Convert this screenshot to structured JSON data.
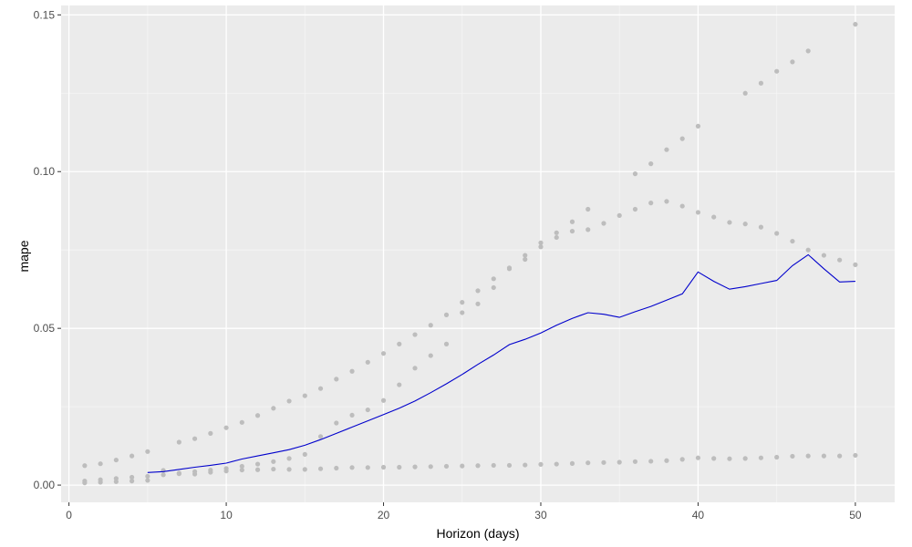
{
  "chart_data": {
    "type": "scatter",
    "title": "",
    "xlabel": "Horizon (days)",
    "ylabel": "mape",
    "xlim": [
      -0.5,
      52.5
    ],
    "ylim": [
      -0.0055,
      0.153
    ],
    "x_ticks": [
      0,
      10,
      20,
      30,
      40,
      50
    ],
    "x_tick_labels": [
      "0",
      "10",
      "20",
      "30",
      "40",
      "50"
    ],
    "y_ticks": [
      0.0,
      0.05,
      0.1,
      0.15
    ],
    "y_tick_labels": [
      "0.00",
      "0.05",
      "0.10",
      "0.15"
    ],
    "grid": true,
    "background_color": "#ebebeb",
    "point_color": "#bdbdbd",
    "line_color": "#0000cc",
    "series": [
      {
        "mark": "point",
        "x": [
          1,
          2,
          3,
          4,
          5,
          7,
          8,
          9,
          10,
          11,
          12,
          13,
          14,
          15,
          16,
          17,
          18,
          19,
          20,
          21,
          22,
          23,
          24,
          25,
          26,
          27,
          28,
          29,
          30,
          31,
          32,
          33,
          34,
          35,
          36,
          37,
          38,
          39,
          40,
          43,
          44,
          45,
          46,
          47,
          50
        ],
        "y": [
          0.0062,
          0.0068,
          0.008,
          0.0093,
          0.0107,
          0.0137,
          0.0148,
          0.0165,
          0.0183,
          0.02,
          0.0222,
          0.0245,
          0.0268,
          0.0285,
          0.0308,
          0.0338,
          0.0363,
          0.0392,
          0.042,
          0.045,
          0.048,
          0.051,
          0.0543,
          0.0583,
          0.062,
          0.0658,
          0.0693,
          0.0733,
          0.0773,
          0.0805,
          0.084,
          0.088,
          0.0835,
          0.086,
          0.0993,
          0.1025,
          0.107,
          0.1105,
          0.1145,
          0.125,
          0.1282,
          0.132,
          0.135,
          0.1385,
          0.147
        ]
      },
      {
        "mark": "point",
        "x": [
          1,
          2,
          3,
          4,
          5,
          6,
          7,
          8,
          9,
          10,
          11,
          12,
          13,
          14,
          15,
          16,
          17,
          18,
          19,
          20,
          21,
          22,
          23,
          24,
          25,
          26,
          27,
          28,
          29,
          30,
          31,
          32,
          33,
          36,
          37,
          38,
          39,
          40,
          41,
          42,
          43,
          44,
          45,
          46,
          47,
          48,
          49,
          50
        ],
        "y": [
          0.0013,
          0.0017,
          0.0021,
          0.0025,
          0.0028,
          0.0033,
          0.0038,
          0.0043,
          0.0048,
          0.0053,
          0.006,
          0.0067,
          0.0075,
          0.0085,
          0.0098,
          0.0155,
          0.0198,
          0.0223,
          0.024,
          0.027,
          0.032,
          0.0373,
          0.0413,
          0.045,
          0.055,
          0.0578,
          0.063,
          0.069,
          0.072,
          0.076,
          0.079,
          0.081,
          0.0815,
          0.088,
          0.09,
          0.0905,
          0.089,
          0.087,
          0.0855,
          0.0838,
          0.0833,
          0.0823,
          0.0803,
          0.0778,
          0.075,
          0.0733,
          0.0718,
          0.0703
        ]
      },
      {
        "mark": "point",
        "x": [
          1,
          2,
          3,
          4,
          5,
          6,
          7,
          8,
          9,
          10,
          11,
          12,
          13,
          14,
          15,
          16,
          17,
          18,
          19,
          20,
          21,
          22,
          23,
          24,
          25,
          26,
          27,
          28,
          29,
          30,
          31,
          32,
          33,
          34,
          35,
          36,
          37,
          38,
          39,
          40,
          41,
          42,
          43,
          44,
          45,
          46,
          47,
          48,
          49,
          50
        ],
        "y": [
          0.0007,
          0.0009,
          0.0011,
          0.0013,
          0.0015,
          0.0047,
          0.0036,
          0.0035,
          0.0041,
          0.0045,
          0.0048,
          0.0049,
          0.0051,
          0.005,
          0.005,
          0.0052,
          0.0054,
          0.0056,
          0.0056,
          0.0057,
          0.0057,
          0.0058,
          0.0059,
          0.006,
          0.0061,
          0.0062,
          0.0063,
          0.0063,
          0.0064,
          0.0066,
          0.0067,
          0.0069,
          0.0071,
          0.0072,
          0.0073,
          0.0075,
          0.0076,
          0.0078,
          0.0082,
          0.0087,
          0.0085,
          0.0084,
          0.0085,
          0.0087,
          0.0089,
          0.0092,
          0.0093,
          0.0093,
          0.0093,
          0.0095
        ]
      },
      {
        "mark": "line",
        "x": [
          5,
          6,
          7,
          8,
          9,
          10,
          11,
          12,
          13,
          14,
          15,
          16,
          17,
          18,
          19,
          20,
          21,
          22,
          23,
          24,
          25,
          26,
          27,
          28,
          29,
          30,
          31,
          32,
          33,
          34,
          35,
          36,
          37,
          38,
          39,
          40,
          41,
          42,
          43,
          44,
          45,
          46,
          47,
          48,
          49,
          50
        ],
        "y": [
          0.004,
          0.0043,
          0.005,
          0.0057,
          0.0063,
          0.007,
          0.0083,
          0.0093,
          0.0103,
          0.0113,
          0.0127,
          0.0145,
          0.0165,
          0.0185,
          0.0205,
          0.0225,
          0.0245,
          0.0268,
          0.0295,
          0.0323,
          0.0353,
          0.0385,
          0.0415,
          0.0448,
          0.0465,
          0.0485,
          0.051,
          0.0532,
          0.055,
          0.0545,
          0.0535,
          0.0553,
          0.057,
          0.059,
          0.061,
          0.068,
          0.065,
          0.0625,
          0.0633,
          0.0643,
          0.0653,
          0.07,
          0.0735,
          0.069,
          0.0648,
          0.065
        ]
      }
    ]
  }
}
